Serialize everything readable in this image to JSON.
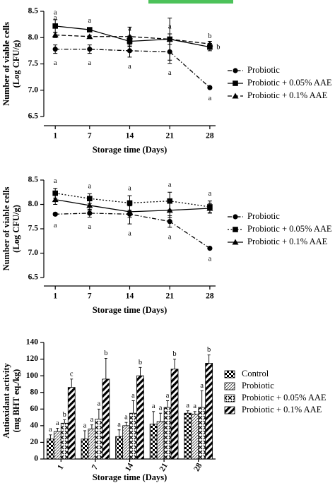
{
  "chart_data": [
    {
      "type": "line",
      "x_label": "Storage time (Days)",
      "y_label": [
        "Number of viable cells",
        "(Log CFU/g)"
      ],
      "x": [
        1,
        7,
        14,
        21,
        28
      ],
      "xlim": [
        -1,
        29
      ],
      "xticks": [
        1,
        7,
        14,
        21,
        28
      ],
      "ylim": [
        6.5,
        8.5
      ],
      "yticks": [
        6.5,
        {
          "value": 7,
          "label": "7.0"
        },
        7.5,
        {
          "value": 8,
          "label": "8.0"
        },
        8.5
      ],
      "series": [
        {
          "name": "Probiotic",
          "color": "#000000",
          "marker": "circle",
          "linestyle": "dashdot",
          "values": [
            7.78,
            7.78,
            7.75,
            7.73,
            7.05
          ],
          "errors": [
            0.08,
            0.08,
            0.12,
            0.22,
            0.02
          ],
          "letters": [
            "a",
            "a",
            "a",
            "a",
            "a"
          ]
        },
        {
          "name": "Probiotic + 0.05% AAE",
          "color": "#000000",
          "marker": "square",
          "linestyle": "solid",
          "values": [
            8.22,
            8.15,
            7.93,
            7.97,
            7.82
          ],
          "errors": [
            0.12,
            0.03,
            0.1,
            0.1,
            0.07
          ],
          "letters": [
            "a",
            "a",
            "a",
            "a",
            "b"
          ]
        },
        {
          "name": "Probiotic + 0.1% AAE",
          "color": "#000000",
          "marker": "triangle",
          "linestyle": "dashed",
          "values": [
            8.05,
            8.02,
            8.02,
            7.97,
            7.88
          ],
          "errors": [
            0.05,
            0.02,
            0.18,
            0.4,
            0.05
          ],
          "letters": [
            "a",
            null,
            null,
            null,
            "b"
          ]
        }
      ]
    },
    {
      "type": "line",
      "x_label": "Storage time (Days)",
      "y_label": [
        "Number of viable cells",
        "(Log CFU/g)"
      ],
      "x": [
        1,
        7,
        14,
        21,
        28
      ],
      "xlim": [
        -1,
        29
      ],
      "xticks": [
        1,
        7,
        14,
        21,
        28
      ],
      "ylim": [
        6.5,
        8.5
      ],
      "yticks": [
        6.5,
        {
          "value": 7,
          "label": "7.0"
        },
        7.5,
        {
          "value": 8,
          "label": "8.0"
        },
        8.5
      ],
      "series": [
        {
          "name": "Probiotic",
          "color": "#000000",
          "marker": "circle",
          "linestyle": "dashdot",
          "values": [
            7.8,
            7.82,
            7.8,
            7.65,
            7.1
          ],
          "errors": [
            0.03,
            0.08,
            0.2,
            0.12,
            0.02
          ],
          "letters": [
            "a",
            "a",
            "a",
            "a",
            "a"
          ]
        },
        {
          "name": "Probiotic + 0.05% AAE",
          "color": "#000000",
          "marker": "square",
          "linestyle": "dotted",
          "values": [
            8.23,
            8.12,
            8.03,
            8.07,
            7.95
          ],
          "errors": [
            0.1,
            0.1,
            0.15,
            0.18,
            0.12
          ],
          "letters": [
            "a",
            "a",
            "a",
            "a",
            "a"
          ]
        },
        {
          "name": "Probiotic + 0.1% AAE",
          "color": "#000000",
          "marker": "triangle",
          "linestyle": "solid",
          "values": [
            8.1,
            7.98,
            7.85,
            7.88,
            7.92
          ],
          "errors": [
            0.1,
            0.1,
            0.12,
            0.15,
            0.1
          ]
        }
      ]
    },
    {
      "type": "bar",
      "x_label": "Storage time (Days)",
      "y_label": [
        "Antioxidant activity",
        "(mg BHT eq./kg)"
      ],
      "categories": [
        "1",
        "7",
        "14",
        "21",
        "28"
      ],
      "ylim": [
        0,
        140
      ],
      "yticks": [
        0,
        20,
        40,
        60,
        80,
        100,
        120,
        140
      ],
      "series": [
        {
          "name": "Control",
          "color": "#000000",
          "values": [
            24,
            24,
            27,
            42,
            55
          ],
          "errors": [
            5,
            10,
            8,
            15,
            3
          ],
          "letters": [
            "a",
            "a",
            "a",
            "a",
            "a"
          ]
        },
        {
          "name": "Probiotic",
          "color": "#000000",
          "values": [
            33,
            36,
            40,
            45,
            54
          ],
          "errors": [
            4,
            5,
            4,
            10,
            3
          ],
          "letters": [
            "a",
            "a",
            "a",
            "a",
            "a"
          ]
        },
        {
          "name": "Probiotic + 0.05% AAE",
          "color": "#000000",
          "values": [
            43,
            48,
            55,
            62,
            62
          ],
          "errors": [
            4,
            12,
            15,
            8,
            20
          ],
          "letters": [
            "b",
            "a",
            "a",
            "a",
            "a"
          ]
        },
        {
          "name": "Probiotic + 0.1% AAE",
          "color": "#000000",
          "values": [
            86,
            96,
            100,
            108,
            115
          ],
          "errors": [
            10,
            25,
            10,
            12,
            10
          ],
          "letters": [
            "c",
            "b",
            "b",
            "b",
            "b"
          ]
        }
      ]
    }
  ]
}
